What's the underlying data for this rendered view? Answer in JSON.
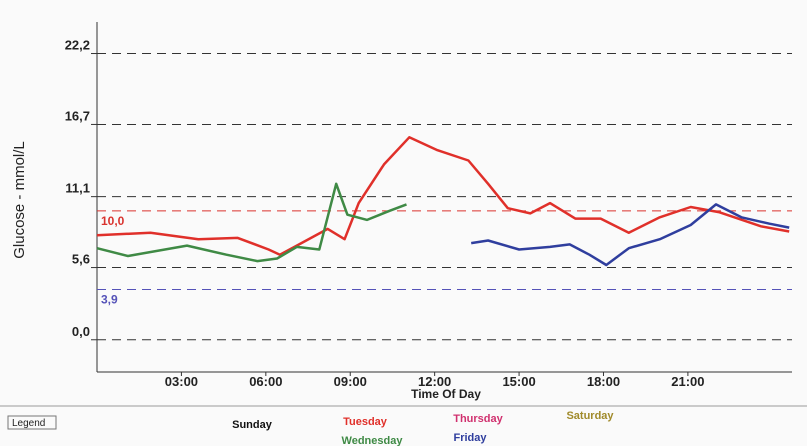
{
  "chart_data": {
    "type": "line",
    "x_label": "Time Of Day",
    "y_label": "Glucose - mmol/L",
    "xlim": [
      0,
      24.7
    ],
    "ylim": [
      -2.5,
      24.8
    ],
    "xticks": [
      {
        "value": 3,
        "label": "03:00"
      },
      {
        "value": 6,
        "label": "06:00"
      },
      {
        "value": 9,
        "label": "09:00"
      },
      {
        "value": 12,
        "label": "12:00"
      },
      {
        "value": 15,
        "label": "15:00"
      },
      {
        "value": 18,
        "label": "18:00"
      },
      {
        "value": 21,
        "label": "21:00"
      }
    ],
    "yticks": [
      {
        "value": 0,
        "label": "0,0"
      },
      {
        "value": 5.6,
        "label": "5,6"
      },
      {
        "value": 11.1,
        "label": "11,1"
      },
      {
        "value": 16.7,
        "label": "16,7"
      },
      {
        "value": 22.2,
        "label": "22,2"
      }
    ],
    "grid": true,
    "reference_lines": [
      {
        "value": 10.0,
        "label": "10,0",
        "color": "#d9332e"
      },
      {
        "value": 3.9,
        "label": "3,9",
        "color": "#5552b8"
      }
    ],
    "legend_title": "Legend",
    "series": [
      {
        "name": "Sunday",
        "color": "#111111",
        "x": [],
        "values": []
      },
      {
        "name": "Tuesday",
        "color": "#e0302a",
        "x": [
          0,
          1.9,
          3.6,
          5,
          6.1,
          6.5,
          7.1,
          8.2,
          8.8,
          9.3,
          10.2,
          11.1,
          12.1,
          13.2,
          13.9,
          14.6,
          15.4,
          16.1,
          17,
          17.9,
          18.9,
          20,
          21.1,
          22.1,
          23.6,
          24.6
        ],
        "values": [
          8.1,
          8.3,
          7.8,
          7.9,
          7.0,
          6.6,
          7.3,
          8.6,
          7.8,
          10.6,
          13.6,
          15.7,
          14.7,
          13.9,
          12.1,
          10.2,
          9.8,
          10.6,
          9.4,
          9.4,
          8.3,
          9.5,
          10.3,
          9.9,
          8.8,
          8.4
        ]
      },
      {
        "name": "Thursday",
        "color": "#d0306e",
        "x": [],
        "values": []
      },
      {
        "name": "Saturday",
        "color": "#a08a2a",
        "x": [],
        "values": []
      },
      {
        "name": "Wednesday",
        "color": "#3f8a45",
        "x": [
          0,
          1.1,
          3.2,
          4.6,
          5.7,
          6.4,
          7.1,
          7.9,
          8.5,
          8.9,
          9.6,
          10.4,
          11
        ],
        "values": [
          7.1,
          6.5,
          7.3,
          6.6,
          6.1,
          6.3,
          7.2,
          7.0,
          12.1,
          9.7,
          9.3,
          10.0,
          10.5
        ]
      },
      {
        "name": "Friday",
        "color": "#2f3e9e",
        "x": [
          13.3,
          13.9,
          15,
          16.1,
          16.8,
          17.5,
          18.1,
          18.9,
          20,
          21.1,
          22,
          22.9,
          23.9,
          24.6
        ],
        "values": [
          7.5,
          7.7,
          7.0,
          7.2,
          7.4,
          6.6,
          5.8,
          7.1,
          7.8,
          8.9,
          10.5,
          9.5,
          9.0,
          8.7
        ]
      }
    ]
  }
}
